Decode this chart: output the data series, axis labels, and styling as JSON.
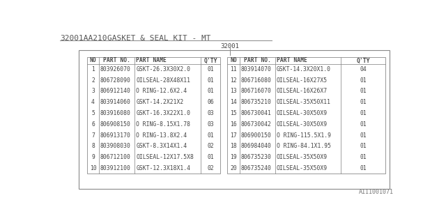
{
  "title_part": "32001AA210",
  "title_desc": "GASKET & SEAL KIT - MT",
  "label_center": "32001",
  "bg_color": "#ffffff",
  "left_headers": [
    "NO",
    "PART NO.",
    "PART NAME",
    "Q'TY"
  ],
  "right_headers": [
    "NO",
    "PART NO.",
    "PART NAME",
    "Q'TY"
  ],
  "left_rows": [
    [
      "1",
      "803926070",
      "GSKT-26.3X30X2.0",
      "01"
    ],
    [
      "2",
      "806728090",
      "OILSEAL-28X48X11",
      "01"
    ],
    [
      "3",
      "806912140",
      "O RING-12.6X2.4",
      "01"
    ],
    [
      "4",
      "803914060",
      "GSKT-14.2X21X2",
      "06"
    ],
    [
      "5",
      "803916080",
      "GSKT-16.3X22X1.0",
      "03"
    ],
    [
      "6",
      "806908150",
      "O RING-8.15X1.78",
      "03"
    ],
    [
      "7",
      "806913170",
      "O RING-13.8X2.4",
      "01"
    ],
    [
      "8",
      "803908030",
      "GSKT-8.3X14X1.4",
      "02"
    ],
    [
      "9",
      "806712100",
      "OILSEAL-12X17.5X8",
      "01"
    ],
    [
      "10",
      "803912100",
      "GSKT-12.3X18X1.4",
      "02"
    ]
  ],
  "right_rows": [
    [
      "11",
      "803914070",
      "GSKT-14.3X20X1.0",
      "04"
    ],
    [
      "12",
      "806716080",
      "OILSEAL-16X27X5",
      "01"
    ],
    [
      "13",
      "806716070",
      "OILSEAL-16X26X7",
      "01"
    ],
    [
      "14",
      "806735210",
      "OILSEAL-35X50X11",
      "01"
    ],
    [
      "15",
      "806730041",
      "OILSEAL-30X50X9",
      "01"
    ],
    [
      "16",
      "806730042",
      "OILSEAL-30X50X9",
      "01"
    ],
    [
      "17",
      "806900150",
      "O RING-115.5X1.9",
      "01"
    ],
    [
      "18",
      "806984040",
      "O RING-84.1X1.95",
      "01"
    ],
    [
      "19",
      "806735230",
      "OILSEAL-35X50X9",
      "01"
    ],
    [
      "20",
      "806735240",
      "OILSEAL-35X50X9",
      "01"
    ]
  ],
  "watermark": "A111001071",
  "line_color": "#888888",
  "text_color": "#444444",
  "title_color": "#555555"
}
